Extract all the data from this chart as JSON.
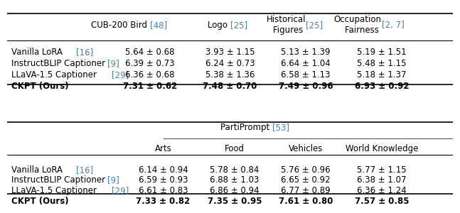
{
  "table1": {
    "header_row1": [
      "",
      "CUB-200 Bird [48]",
      "Logo [25]",
      "Historical\nFigures [25]",
      "Occupation\nFairness [2, 7]"
    ],
    "header_refs": [
      "",
      "[48]",
      "[25]",
      "[25]",
      "[2, 7]"
    ],
    "rows": [
      {
        "method": "Vanilla LoRA [16]",
        "values": [
          "5.64 ± 0.68",
          "3.93 ± 1.15",
          "5.13 ± 1.39",
          "5.19 ± 1.51"
        ],
        "bold": false
      },
      {
        "method": "InstructBLIP Captioner [9]",
        "values": [
          "6.39 ± 0.73",
          "6.24 ± 0.73",
          "6.64 ± 1.04",
          "5.48 ± 1.15"
        ],
        "bold": false
      },
      {
        "method": "LLaVA-1.5 Captioner [29]",
        "values": [
          "6.36 ± 0.68",
          "5.38 ± 1.36",
          "6.58 ± 1.13",
          "5.18 ± 1.37"
        ],
        "bold": false
      },
      {
        "method": "CKPT (Ours)",
        "values": [
          "7.31 ± 0.62",
          "7.48 ± 0.70",
          "7.49 ± 0.96",
          "6.93 ± 0.92"
        ],
        "bold": true
      }
    ]
  },
  "table2": {
    "super_header": "PartiPrompt [53]",
    "sub_headers": [
      "Arts",
      "Food",
      "Vehicles",
      "World Knowledge"
    ],
    "rows": [
      {
        "method": "Vanilla LoRA [16]",
        "values": [
          "6.14 ± 0.94",
          "5.78 ± 0.84",
          "5.76 ± 0.96",
          "5.77 ± 1.15"
        ],
        "bold": false
      },
      {
        "method": "InstructBLIP Captioner [9]",
        "values": [
          "6.59 ± 0.93",
          "6.88 ± 1.03",
          "6.65 ± 0.92",
          "6.38 ± 1.07"
        ],
        "bold": false
      },
      {
        "method": "LLaVA-1.5 Captioner [29]",
        "values": [
          "6.61 ± 0.83",
          "6.86 ± 0.94",
          "6.77 ± 0.89",
          "6.36 ± 1.24"
        ],
        "bold": false
      },
      {
        "method": "CKPT (Ours)",
        "values": [
          "7.33 ± 0.82",
          "7.35 ± 0.95",
          "7.61 ± 0.80",
          "7.57 ± 0.85"
        ],
        "bold": true
      }
    ]
  },
  "ref_color": "#4682B4",
  "text_color": "#000000",
  "bg_color": "#ffffff",
  "fontsize": 8.5
}
